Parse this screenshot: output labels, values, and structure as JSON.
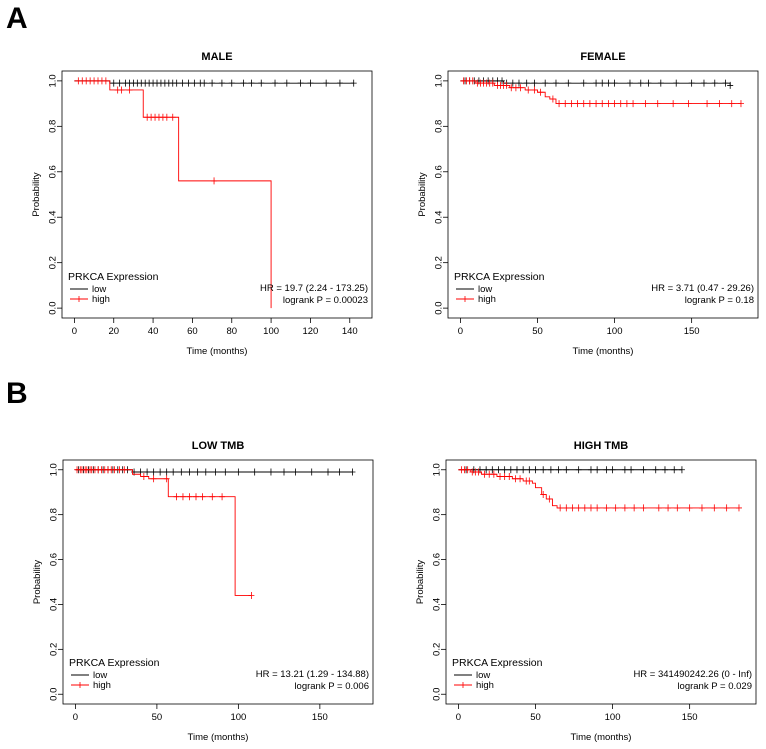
{
  "panel_labels": {
    "a": "A",
    "b": "B"
  },
  "colors": {
    "low": "#000000",
    "high": "#ff0000",
    "frame": "#000000"
  },
  "chart_data": [
    {
      "type": "line",
      "panel": "A",
      "title": "MALE",
      "xlabel": "Time (months)",
      "ylabel": "Probability",
      "xlim": [
        0,
        145
      ],
      "ylim": [
        0,
        1
      ],
      "xticks": [
        0,
        20,
        40,
        60,
        80,
        100,
        120,
        140
      ],
      "yticks": [
        0.0,
        0.2,
        0.4,
        0.6,
        0.8,
        1.0
      ],
      "legend": {
        "title": "PRKCA Expression",
        "entries": [
          "low",
          "high"
        ],
        "position": "bottom-left"
      },
      "stats": {
        "hr": "HR = 19.7 (2.24 - 173.25)",
        "logrank": "logrank P = 0.00023"
      },
      "series": [
        {
          "name": "low",
          "color": "#000000",
          "steps": [
            [
              0,
              1.0
            ],
            [
              18,
              0.99
            ],
            [
              142,
              0.99
            ]
          ],
          "censor": [
            20,
            23,
            26,
            28,
            30,
            32,
            34,
            36,
            38,
            40,
            42,
            44,
            46,
            48,
            50,
            52,
            55,
            58,
            61,
            64,
            66,
            70,
            75,
            80,
            86,
            90,
            95,
            102,
            108,
            115,
            120,
            128,
            135,
            142
          ]
        },
        {
          "name": "high",
          "color": "#ff0000",
          "steps": [
            [
              0,
              1.0
            ],
            [
              18,
              0.96
            ],
            [
              35,
              0.84
            ],
            [
              53,
              0.56
            ],
            [
              100,
              0.0
            ]
          ],
          "censor": [
            2,
            4,
            6,
            8,
            10,
            12,
            14,
            16,
            22,
            24,
            28,
            37,
            39,
            41,
            43,
            45,
            47,
            50,
            71
          ]
        }
      ]
    },
    {
      "type": "line",
      "panel": "A",
      "title": "FEMALE",
      "xlabel": "Time (months)",
      "ylabel": "Probability",
      "xlim": [
        0,
        185
      ],
      "ylim": [
        0,
        1
      ],
      "xticks": [
        0,
        50,
        100,
        150
      ],
      "yticks": [
        0.0,
        0.2,
        0.4,
        0.6,
        0.8,
        1.0
      ],
      "legend": {
        "title": "PRKCA Expression",
        "entries": [
          "low",
          "high"
        ],
        "position": "bottom-left"
      },
      "stats": {
        "hr": "HR = 3.71 (0.47 - 29.26)",
        "logrank": "logrank P = 0.18"
      },
      "series": [
        {
          "name": "low",
          "color": "#000000",
          "steps": [
            [
              0,
              1.0
            ],
            [
              28,
              0.99
            ],
            [
              175,
              0.98
            ]
          ],
          "censor": [
            3,
            6,
            9,
            12,
            15,
            18,
            21,
            24,
            27,
            30,
            34,
            38,
            43,
            48,
            55,
            62,
            70,
            80,
            88,
            92,
            96,
            100,
            110,
            117,
            122,
            130,
            140,
            150,
            158,
            165,
            172,
            175
          ]
        },
        {
          "name": "high",
          "color": "#ff0000",
          "steps": [
            [
              0,
              1.0
            ],
            [
              10,
              0.99
            ],
            [
              22,
              0.98
            ],
            [
              32,
              0.97
            ],
            [
              42,
              0.96
            ],
            [
              50,
              0.95
            ],
            [
              55,
              0.93
            ],
            [
              58,
              0.92
            ],
            [
              62,
              0.9
            ],
            [
              182,
              0.9
            ]
          ],
          "censor": [
            2,
            4,
            6,
            8,
            11,
            13,
            15,
            17,
            19,
            21,
            24,
            26,
            28,
            30,
            33,
            36,
            39,
            44,
            48,
            52,
            60,
            64,
            68,
            72,
            76,
            80,
            84,
            88,
            92,
            96,
            100,
            104,
            108,
            112,
            120,
            128,
            138,
            148,
            160,
            168,
            176,
            182
          ]
        }
      ]
    },
    {
      "type": "line",
      "panel": "B",
      "title": "LOW TMB",
      "xlabel": "Time (months)",
      "ylabel": "Probability",
      "xlim": [
        0,
        175
      ],
      "ylim": [
        0,
        1
      ],
      "xticks": [
        0,
        50,
        100,
        150
      ],
      "yticks": [
        0.0,
        0.2,
        0.4,
        0.6,
        0.8,
        1.0
      ],
      "legend": {
        "title": "PRKCA Expression",
        "entries": [
          "low",
          "high"
        ],
        "position": "bottom-left"
      },
      "stats": {
        "hr": "HR = 13.21 (1.29 - 134.88)",
        "logrank": "logrank P = 0.006"
      },
      "series": [
        {
          "name": "low",
          "color": "#000000",
          "steps": [
            [
              0,
              1.0
            ],
            [
              35,
              0.99
            ],
            [
              170,
              0.99
            ]
          ],
          "censor": [
            2,
            5,
            8,
            11,
            14,
            17,
            20,
            23,
            26,
            29,
            32,
            36,
            40,
            44,
            48,
            52,
            56,
            60,
            65,
            70,
            75,
            80,
            86,
            92,
            100,
            110,
            120,
            128,
            135,
            145,
            155,
            162,
            170
          ]
        },
        {
          "name": "high",
          "color": "#ff0000",
          "steps": [
            [
              0,
              1.0
            ],
            [
              35,
              0.98
            ],
            [
              40,
              0.97
            ],
            [
              45,
              0.96
            ],
            [
              57,
              0.88
            ],
            [
              98,
              0.44
            ],
            [
              108,
              0.44
            ]
          ],
          "censor": [
            1,
            3,
            4,
            6,
            7,
            9,
            10,
            12,
            14,
            16,
            18,
            20,
            22,
            24,
            27,
            30,
            42,
            48,
            56,
            62,
            66,
            70,
            74,
            78,
            84,
            90,
            108
          ]
        }
      ]
    },
    {
      "type": "line",
      "panel": "B",
      "title": "HIGH TMB",
      "xlabel": "Time (months)",
      "ylabel": "Probability",
      "xlim": [
        0,
        185
      ],
      "ylim": [
        0,
        1
      ],
      "xticks": [
        0,
        50,
        100,
        150
      ],
      "yticks": [
        0.0,
        0.2,
        0.4,
        0.6,
        0.8,
        1.0
      ],
      "legend": {
        "title": "PRKCA Expression",
        "entries": [
          "low",
          "high"
        ],
        "position": "bottom-left"
      },
      "stats": {
        "hr": "HR = 341490242.26 (0 - Inf)",
        "logrank": "logrank P = 0.029"
      },
      "series": [
        {
          "name": "low",
          "color": "#000000",
          "steps": [
            [
              0,
              1.0
            ],
            [
              145,
              1.0
            ]
          ],
          "censor": [
            5,
            10,
            14,
            18,
            22,
            26,
            30,
            34,
            38,
            42,
            46,
            50,
            55,
            60,
            65,
            70,
            78,
            86,
            90,
            96,
            100,
            108,
            112,
            120,
            128,
            134,
            140,
            145
          ]
        },
        {
          "name": "high",
          "color": "#ff0000",
          "steps": [
            [
              0,
              1.0
            ],
            [
              8,
              0.99
            ],
            [
              15,
              0.98
            ],
            [
              25,
              0.97
            ],
            [
              35,
              0.96
            ],
            [
              42,
              0.95
            ],
            [
              48,
              0.94
            ],
            [
              50,
              0.92
            ],
            [
              54,
              0.89
            ],
            [
              57,
              0.87
            ],
            [
              61,
              0.84
            ],
            [
              64,
              0.83
            ],
            [
              182,
              0.83
            ]
          ],
          "censor": [
            2,
            4,
            6,
            9,
            11,
            13,
            17,
            20,
            23,
            27,
            30,
            33,
            37,
            40,
            44,
            46,
            55,
            59,
            66,
            70,
            74,
            78,
            82,
            86,
            90,
            96,
            102,
            108,
            114,
            120,
            130,
            136,
            142,
            150,
            158,
            166,
            174,
            182
          ]
        }
      ]
    }
  ]
}
